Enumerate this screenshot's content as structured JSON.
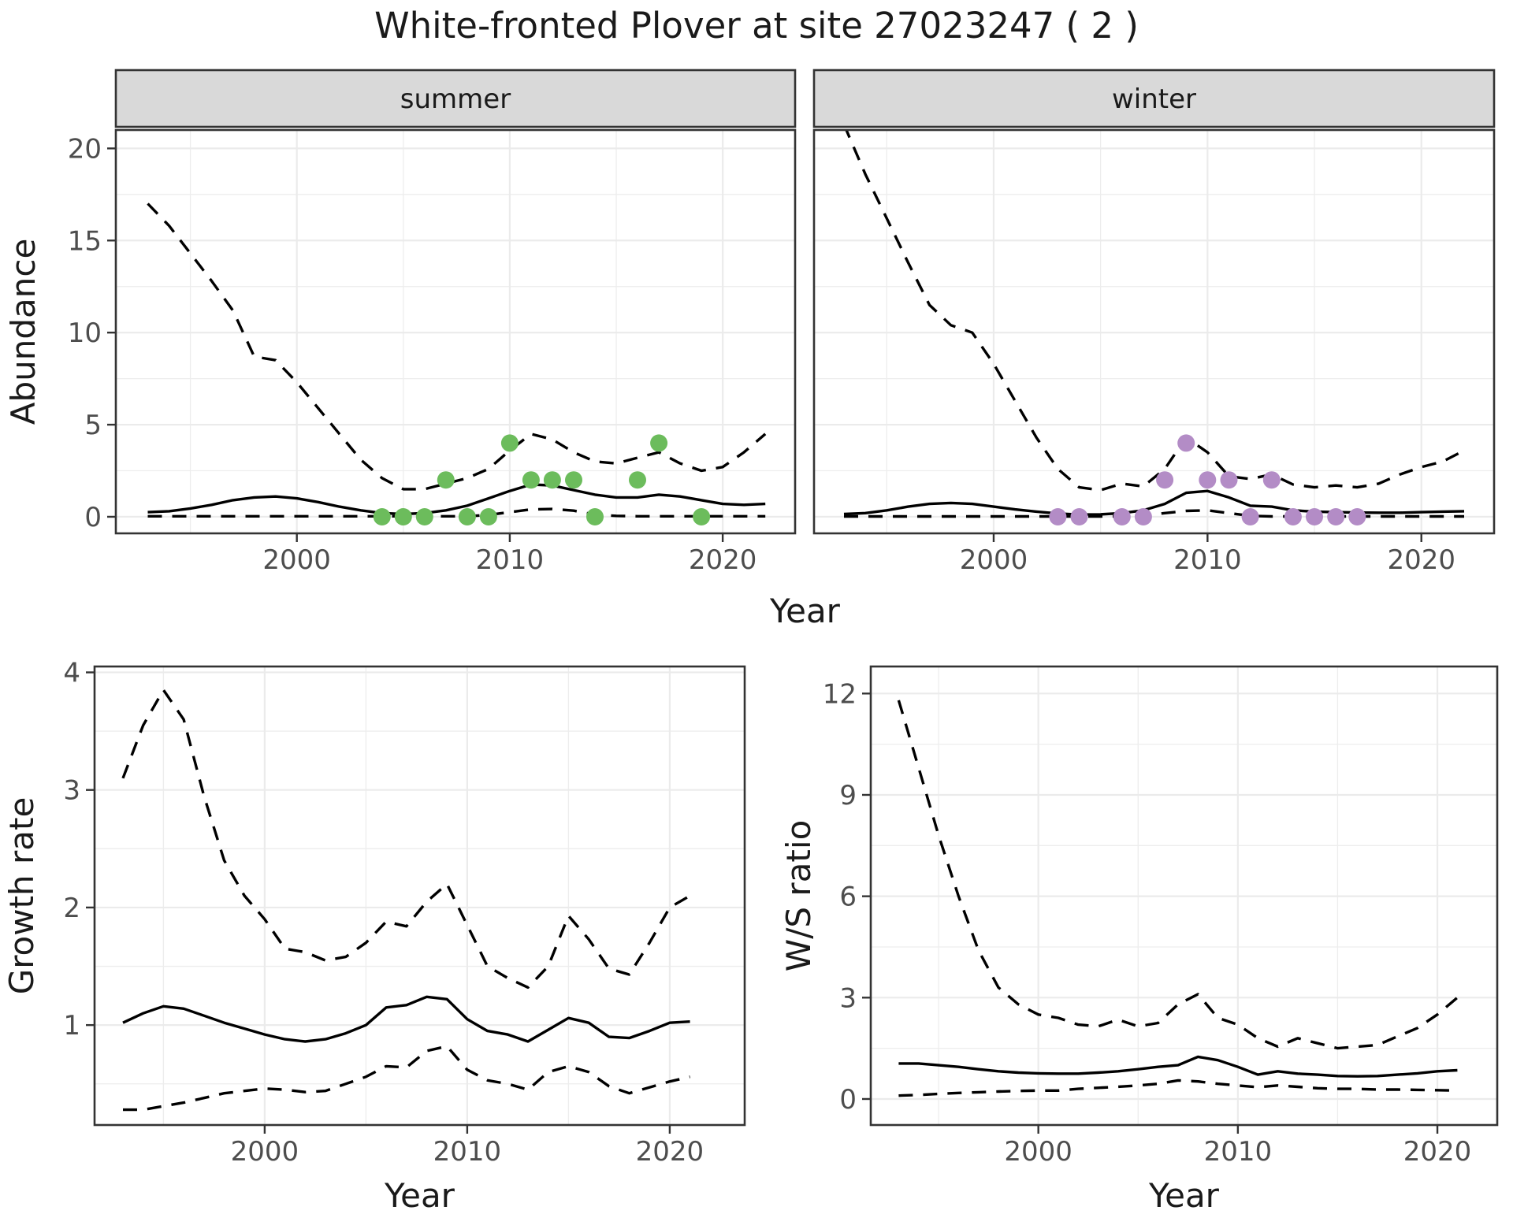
{
  "title": "White-fronted Plover at site 27023247 ( 2 )",
  "colors": {
    "background": "#FFFFFF",
    "panel_border": "#333333",
    "grid_major": "#EBEBEB",
    "grid_minor": "#EDEDED",
    "strip_fill": "#D9D9D9",
    "strip_text": "#1A1A1A",
    "tick_text": "#4D4D4D",
    "axis_title_text": "#1A1A1A",
    "line": "#000000",
    "summer_point": "#6CBC5C",
    "winter_point": "#B38CC6"
  },
  "chart_data": [
    {
      "id": "abundance-summer",
      "type": "line",
      "facet_label": "summer",
      "xlabel": "Year",
      "ylabel": "Abundance",
      "x_ticks": [
        2000,
        2010,
        2020
      ],
      "y_ticks": [
        0,
        5,
        10,
        15,
        20
      ],
      "x_minor": [
        1995,
        2005,
        2015
      ],
      "y_minor": [
        2.5,
        7.5,
        12.5,
        17.5
      ],
      "xlim": [
        1991.5,
        2023.4
      ],
      "ylim": [
        -0.9,
        21.0
      ],
      "x": [
        1993,
        1994,
        1995,
        1996,
        1997,
        1998,
        1999,
        2000,
        2001,
        2002,
        2003,
        2004,
        2005,
        2006,
        2007,
        2008,
        2009,
        2010,
        2011,
        2012,
        2013,
        2014,
        2015,
        2016,
        2017,
        2018,
        2019,
        2020,
        2021,
        2022
      ],
      "series": [
        {
          "name": "upper 95% CI",
          "linetype": "dashed",
          "values": [
            17,
            15.8,
            14.3,
            12.8,
            11.2,
            8.7,
            8.5,
            7.3,
            5.9,
            4.5,
            3.1,
            2.1,
            1.5,
            1.5,
            1.8,
            2.1,
            2.6,
            3.6,
            4.5,
            4.2,
            3.5,
            3.0,
            2.9,
            3.2,
            3.5,
            2.9,
            2.5,
            2.7,
            3.5,
            4.5
          ]
        },
        {
          "name": "mean",
          "linetype": "solid",
          "values": [
            0.25,
            0.3,
            0.45,
            0.65,
            0.9,
            1.05,
            1.1,
            1.0,
            0.8,
            0.55,
            0.35,
            0.2,
            0.15,
            0.2,
            0.35,
            0.6,
            1.0,
            1.4,
            1.75,
            1.7,
            1.45,
            1.2,
            1.05,
            1.05,
            1.2,
            1.1,
            0.9,
            0.7,
            0.65,
            0.7
          ]
        },
        {
          "name": "lower 95% CI",
          "linetype": "dashed",
          "values": [
            0.03,
            0.03,
            0.03,
            0.03,
            0.03,
            0.03,
            0.03,
            0.03,
            0.03,
            0.03,
            0.03,
            0.03,
            0.03,
            0.03,
            0.03,
            0.03,
            0.1,
            0.25,
            0.4,
            0.42,
            0.33,
            0.12,
            0.05,
            0.03,
            0.03,
            0.03,
            0.03,
            0.03,
            0.03,
            0.03
          ]
        }
      ],
      "observed_points": {
        "color": "#6CBC5C",
        "data": [
          [
            2004,
            0
          ],
          [
            2005,
            0
          ],
          [
            2006,
            0
          ],
          [
            2007,
            2
          ],
          [
            2008,
            0
          ],
          [
            2009,
            0
          ],
          [
            2010,
            4
          ],
          [
            2011,
            2
          ],
          [
            2012,
            2
          ],
          [
            2013,
            2
          ],
          [
            2014,
            0
          ],
          [
            2016,
            2
          ],
          [
            2017,
            4
          ],
          [
            2019,
            0
          ]
        ]
      }
    },
    {
      "id": "abundance-winter",
      "type": "line",
      "facet_label": "winter",
      "xlabel": "Year",
      "ylabel": "",
      "x_ticks": [
        2000,
        2010,
        2020
      ],
      "y_ticks": [
        0,
        5,
        10,
        15,
        20
      ],
      "x_minor": [
        1995,
        2005,
        2015
      ],
      "y_minor": [
        2.5,
        7.5,
        12.5,
        17.5
      ],
      "xlim": [
        1991.6,
        2023.4
      ],
      "ylim": [
        -0.9,
        21.0
      ],
      "x": [
        1993,
        1994,
        1995,
        1996,
        1997,
        1998,
        1999,
        2000,
        2001,
        2002,
        2003,
        2004,
        2005,
        2006,
        2007,
        2008,
        2009,
        2010,
        2011,
        2012,
        2013,
        2014,
        2015,
        2016,
        2017,
        2018,
        2019,
        2020,
        2021,
        2022
      ],
      "series": [
        {
          "name": "upper 95% CI",
          "linetype": "dashed",
          "values": [
            21.3,
            18.6,
            16.2,
            13.8,
            11.5,
            10.4,
            10.0,
            8.3,
            6.3,
            4.3,
            2.6,
            1.6,
            1.45,
            1.8,
            1.65,
            2.6,
            4.3,
            3.5,
            2.2,
            2.05,
            2.3,
            1.75,
            1.6,
            1.7,
            1.6,
            1.8,
            2.3,
            2.7,
            3.0,
            3.6
          ]
        },
        {
          "name": "mean",
          "linetype": "solid",
          "values": [
            0.15,
            0.2,
            0.35,
            0.55,
            0.7,
            0.75,
            0.7,
            0.55,
            0.4,
            0.28,
            0.18,
            0.12,
            0.13,
            0.2,
            0.35,
            0.7,
            1.3,
            1.4,
            1.05,
            0.6,
            0.55,
            0.35,
            0.28,
            0.25,
            0.23,
            0.22,
            0.22,
            0.25,
            0.28,
            0.3
          ]
        },
        {
          "name": "lower 95% CI",
          "linetype": "dashed",
          "values": [
            0.02,
            0.02,
            0.02,
            0.02,
            0.02,
            0.02,
            0.02,
            0.02,
            0.02,
            0.02,
            0.02,
            0.02,
            0.02,
            0.02,
            0.05,
            0.2,
            0.32,
            0.35,
            0.2,
            0.05,
            0.02,
            0.02,
            0.02,
            0.02,
            0.02,
            0.02,
            0.02,
            0.02,
            0.02,
            0.02
          ]
        }
      ],
      "observed_points": {
        "color": "#B38CC6",
        "data": [
          [
            2003,
            0
          ],
          [
            2004,
            0
          ],
          [
            2006,
            0
          ],
          [
            2007,
            0
          ],
          [
            2008,
            2
          ],
          [
            2009,
            4
          ],
          [
            2010,
            2
          ],
          [
            2011,
            2
          ],
          [
            2012,
            0
          ],
          [
            2013,
            2
          ],
          [
            2014,
            0
          ],
          [
            2015,
            0
          ],
          [
            2016,
            0
          ],
          [
            2017,
            0
          ]
        ]
      }
    },
    {
      "id": "growth-rate",
      "type": "line",
      "facet_label": "",
      "xlabel": "Year",
      "ylabel": "Growth rate",
      "x_ticks": [
        2000,
        2010,
        2020
      ],
      "y_ticks": [
        1,
        2,
        3,
        4
      ],
      "x_minor": [
        1995,
        2005,
        2015
      ],
      "y_minor": [
        0.5,
        1.5,
        2.5,
        3.5
      ],
      "xlim": [
        1991.6,
        2023.7
      ],
      "ylim": [
        0.15,
        4.05
      ],
      "x": [
        1993,
        1994,
        1995,
        1996,
        1997,
        1998,
        1999,
        2000,
        2001,
        2002,
        2003,
        2004,
        2005,
        2006,
        2007,
        2008,
        2009,
        2010,
        2011,
        2012,
        2013,
        2014,
        2015,
        2016,
        2017,
        2018,
        2019,
        2020,
        2021
      ],
      "series": [
        {
          "name": "upper 95% CI",
          "linetype": "dashed",
          "values": [
            3.1,
            3.55,
            3.85,
            3.6,
            2.95,
            2.4,
            2.1,
            1.9,
            1.65,
            1.62,
            1.55,
            1.58,
            1.7,
            1.88,
            1.84,
            2.05,
            2.2,
            1.85,
            1.5,
            1.4,
            1.32,
            1.5,
            1.93,
            1.73,
            1.48,
            1.43,
            1.7,
            2.0,
            2.1
          ]
        },
        {
          "name": "mean",
          "linetype": "solid",
          "values": [
            1.02,
            1.1,
            1.16,
            1.14,
            1.08,
            1.02,
            0.97,
            0.92,
            0.88,
            0.86,
            0.88,
            0.93,
            1.0,
            1.15,
            1.17,
            1.24,
            1.22,
            1.05,
            0.95,
            0.92,
            0.86,
            0.96,
            1.06,
            1.02,
            0.9,
            0.89,
            0.95,
            1.02,
            1.03
          ]
        },
        {
          "name": "lower 95% CI",
          "linetype": "dashed",
          "values": [
            0.28,
            0.28,
            0.31,
            0.34,
            0.38,
            0.42,
            0.44,
            0.46,
            0.45,
            0.43,
            0.44,
            0.5,
            0.56,
            0.65,
            0.64,
            0.78,
            0.82,
            0.62,
            0.53,
            0.5,
            0.45,
            0.6,
            0.65,
            0.6,
            0.48,
            0.42,
            0.47,
            0.52,
            0.56
          ]
        }
      ],
      "observed_points": {
        "color": "",
        "data": []
      }
    },
    {
      "id": "ws-ratio",
      "type": "line",
      "facet_label": "",
      "xlabel": "Year",
      "ylabel": "W/S ratio",
      "x_ticks": [
        2000,
        2010,
        2020
      ],
      "y_ticks": [
        0,
        3,
        6,
        9,
        12
      ],
      "x_minor": [
        1995,
        2005,
        2015
      ],
      "y_minor": [
        1.5,
        4.5,
        7.5,
        10.5
      ],
      "xlim": [
        1991.6,
        2023.0
      ],
      "ylim": [
        -0.77,
        12.8
      ],
      "x": [
        1993,
        1994,
        1995,
        1996,
        1997,
        1998,
        1999,
        2000,
        2001,
        2002,
        2003,
        2004,
        2005,
        2006,
        2007,
        2008,
        2009,
        2010,
        2011,
        2012,
        2013,
        2014,
        2015,
        2016,
        2017,
        2018,
        2019,
        2020,
        2021
      ],
      "series": [
        {
          "name": "upper 95% CI",
          "linetype": "dashed",
          "values": [
            11.8,
            9.8,
            7.8,
            6.0,
            4.4,
            3.3,
            2.8,
            2.5,
            2.4,
            2.2,
            2.15,
            2.35,
            2.15,
            2.25,
            2.8,
            3.1,
            2.4,
            2.2,
            1.8,
            1.55,
            1.8,
            1.65,
            1.5,
            1.55,
            1.6,
            1.85,
            2.1,
            2.5,
            3.0
          ]
        },
        {
          "name": "mean",
          "linetype": "solid",
          "values": [
            1.05,
            1.05,
            1.0,
            0.95,
            0.88,
            0.82,
            0.78,
            0.76,
            0.75,
            0.75,
            0.78,
            0.82,
            0.88,
            0.95,
            1.0,
            1.25,
            1.15,
            0.95,
            0.72,
            0.82,
            0.75,
            0.72,
            0.68,
            0.67,
            0.68,
            0.72,
            0.76,
            0.82,
            0.85
          ]
        },
        {
          "name": "lower 95% CI",
          "linetype": "dashed",
          "values": [
            0.1,
            0.12,
            0.15,
            0.18,
            0.2,
            0.22,
            0.24,
            0.25,
            0.25,
            0.3,
            0.33,
            0.36,
            0.4,
            0.45,
            0.55,
            0.52,
            0.45,
            0.4,
            0.35,
            0.4,
            0.36,
            0.32,
            0.3,
            0.3,
            0.28,
            0.28,
            0.27,
            0.26,
            0.25
          ]
        }
      ],
      "observed_points": {
        "color": "",
        "data": []
      }
    }
  ]
}
